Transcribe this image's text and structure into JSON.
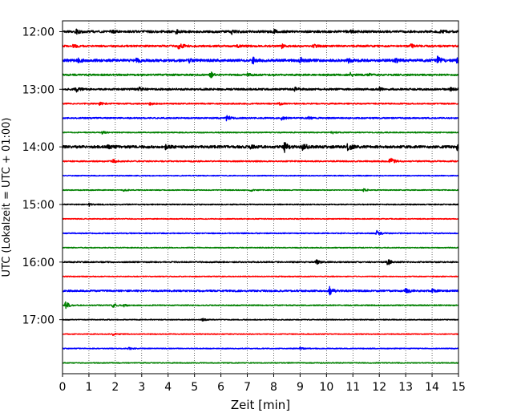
{
  "chart_data": {
    "type": "line",
    "title": "",
    "xlabel": "Zeit  [min]",
    "ylabel": "UTC (Lokalzeit = UTC + 01:00)",
    "xlim": [
      0,
      15
    ],
    "x_ticks": [
      0,
      1,
      2,
      3,
      4,
      5,
      6,
      7,
      8,
      9,
      10,
      11,
      12,
      13,
      14,
      15
    ],
    "x_grid": "dotted",
    "y_ticks": [
      "12:00",
      "13:00",
      "14:00",
      "15:00",
      "16:00",
      "17:00"
    ],
    "series_colors": [
      "#000000",
      "#ff0000",
      "#0000ff",
      "#008000"
    ],
    "traces": [
      {
        "start": "12:00",
        "color": "#000000",
        "noise": 0.25,
        "events": [
          {
            "t": 0.5,
            "a": 0.5
          },
          {
            "t": 1.8,
            "a": 0.4
          },
          {
            "t": 4.3,
            "a": 0.4
          },
          {
            "t": 6.4,
            "a": 0.5
          },
          {
            "t": 8.0,
            "a": 0.4
          },
          {
            "t": 10.9,
            "a": 0.4
          },
          {
            "t": 14.3,
            "a": 0.5
          }
        ]
      },
      {
        "start": "12:15",
        "color": "#ff0000",
        "noise": 0.22,
        "events": [
          {
            "t": 0.4,
            "a": 0.4
          },
          {
            "t": 4.4,
            "a": 1.0
          },
          {
            "t": 6.6,
            "a": 0.4
          },
          {
            "t": 8.3,
            "a": 0.4
          },
          {
            "t": 9.5,
            "a": 0.35
          },
          {
            "t": 13.2,
            "a": 0.4
          }
        ]
      },
      {
        "start": "12:30",
        "color": "#0000ff",
        "noise": 0.3,
        "events": [
          {
            "t": 0.6,
            "a": 0.4
          },
          {
            "t": 2.8,
            "a": 0.5
          },
          {
            "t": 4.8,
            "a": 0.4
          },
          {
            "t": 7.2,
            "a": 0.8
          },
          {
            "t": 9.0,
            "a": 0.8
          },
          {
            "t": 10.8,
            "a": 0.5
          },
          {
            "t": 12.6,
            "a": 0.5
          },
          {
            "t": 14.2,
            "a": 0.9
          },
          {
            "t": 14.9,
            "a": 0.6
          }
        ]
      },
      {
        "start": "12:45",
        "color": "#008000",
        "noise": 0.2,
        "events": [
          {
            "t": 5.6,
            "a": 0.7
          },
          {
            "t": 7.0,
            "a": 0.35
          },
          {
            "t": 10.9,
            "a": 0.4
          },
          {
            "t": 11.6,
            "a": 0.35
          }
        ]
      },
      {
        "start": "13:00",
        "color": "#000000",
        "noise": 0.22,
        "events": [
          {
            "t": 0.5,
            "a": 0.6
          },
          {
            "t": 2.9,
            "a": 0.35
          },
          {
            "t": 8.8,
            "a": 0.4
          },
          {
            "t": 12.0,
            "a": 0.35
          },
          {
            "t": 14.7,
            "a": 0.5
          }
        ]
      },
      {
        "start": "13:15",
        "color": "#ff0000",
        "noise": 0.15,
        "events": [
          {
            "t": 1.4,
            "a": 0.4
          },
          {
            "t": 3.3,
            "a": 0.35
          },
          {
            "t": 8.2,
            "a": 0.35
          }
        ]
      },
      {
        "start": "13:30",
        "color": "#0000ff",
        "noise": 0.15,
        "events": [
          {
            "t": 6.2,
            "a": 0.9
          },
          {
            "t": 8.3,
            "a": 0.5
          },
          {
            "t": 9.3,
            "a": 0.35
          }
        ]
      },
      {
        "start": "13:45",
        "color": "#008000",
        "noise": 0.12,
        "events": [
          {
            "t": 1.5,
            "a": 0.3
          },
          {
            "t": 10.2,
            "a": 0.3
          }
        ]
      },
      {
        "start": "14:00",
        "color": "#000000",
        "noise": 0.3,
        "events": [
          {
            "t": 1.7,
            "a": 0.6
          },
          {
            "t": 3.9,
            "a": 0.5
          },
          {
            "t": 7.1,
            "a": 0.4
          },
          {
            "t": 8.4,
            "a": 1.3
          },
          {
            "t": 9.1,
            "a": 1.0
          },
          {
            "t": 10.8,
            "a": 1.0
          },
          {
            "t": 14.95,
            "a": 0.8
          }
        ]
      },
      {
        "start": "14:15",
        "color": "#ff0000",
        "noise": 0.15,
        "events": [
          {
            "t": 1.9,
            "a": 0.4
          },
          {
            "t": 12.4,
            "a": 1.0
          }
        ]
      },
      {
        "start": "14:30",
        "color": "#0000ff",
        "noise": 0.1,
        "events": []
      },
      {
        "start": "14:45",
        "color": "#008000",
        "noise": 0.1,
        "events": [
          {
            "t": 2.3,
            "a": 0.3
          },
          {
            "t": 7.1,
            "a": 0.3
          },
          {
            "t": 11.4,
            "a": 0.3
          }
        ]
      },
      {
        "start": "15:00",
        "color": "#000000",
        "noise": 0.12,
        "events": [
          {
            "t": 1.0,
            "a": 0.35
          }
        ]
      },
      {
        "start": "15:15",
        "color": "#ff0000",
        "noise": 0.1,
        "events": []
      },
      {
        "start": "15:30",
        "color": "#0000ff",
        "noise": 0.12,
        "events": [
          {
            "t": 11.9,
            "a": 0.6
          }
        ]
      },
      {
        "start": "15:45",
        "color": "#008000",
        "noise": 0.1,
        "events": []
      },
      {
        "start": "16:00",
        "color": "#000000",
        "noise": 0.15,
        "events": [
          {
            "t": 9.6,
            "a": 0.6
          },
          {
            "t": 12.3,
            "a": 0.8
          }
        ]
      },
      {
        "start": "16:15",
        "color": "#ff0000",
        "noise": 0.1,
        "events": []
      },
      {
        "start": "16:30",
        "color": "#0000ff",
        "noise": 0.2,
        "events": [
          {
            "t": 10.1,
            "a": 1.1
          },
          {
            "t": 13.0,
            "a": 0.7
          },
          {
            "t": 14.0,
            "a": 0.4
          }
        ]
      },
      {
        "start": "16:45",
        "color": "#008000",
        "noise": 0.12,
        "events": [
          {
            "t": 0.1,
            "a": 1.0
          },
          {
            "t": 1.9,
            "a": 0.5
          },
          {
            "t": 2.3,
            "a": 0.35
          }
        ]
      },
      {
        "start": "17:00",
        "color": "#000000",
        "noise": 0.1,
        "events": [
          {
            "t": 5.3,
            "a": 0.35
          }
        ]
      },
      {
        "start": "17:15",
        "color": "#ff0000",
        "noise": 0.1,
        "events": [
          {
            "t": 1.9,
            "a": 0.35
          }
        ]
      },
      {
        "start": "17:30",
        "color": "#0000ff",
        "noise": 0.1,
        "events": [
          {
            "t": 2.5,
            "a": 0.3
          },
          {
            "t": 9.0,
            "a": 0.25
          }
        ]
      },
      {
        "start": "17:45",
        "color": "#008000",
        "noise": 0.1,
        "events": []
      }
    ]
  }
}
